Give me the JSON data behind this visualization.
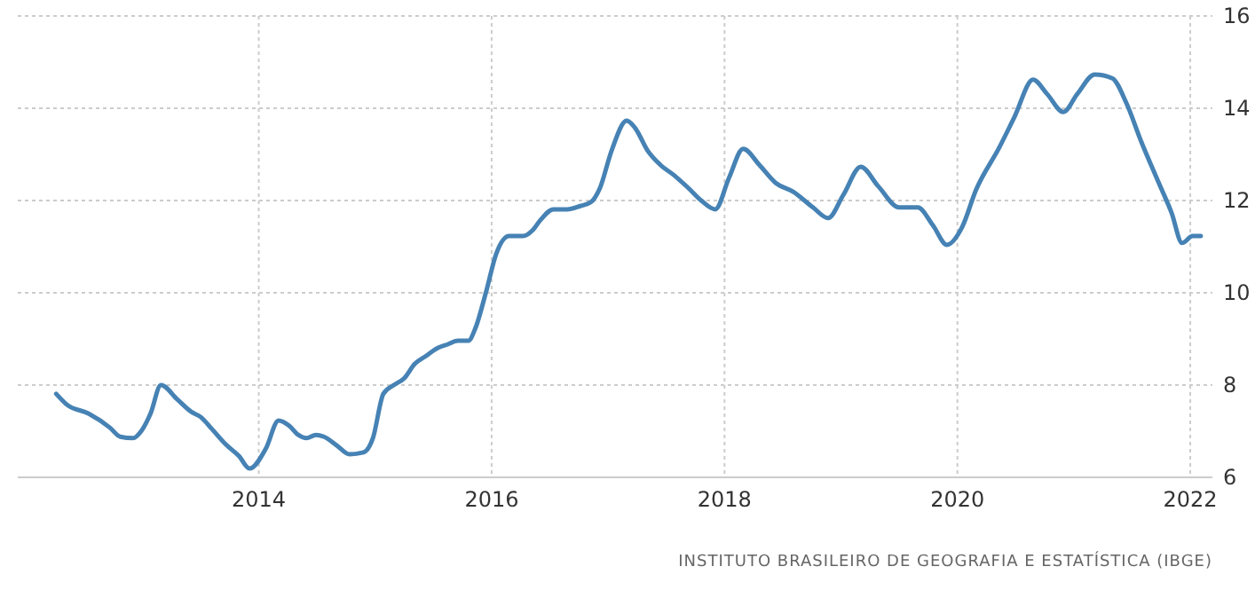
{
  "chart_data": {
    "type": "line",
    "annotations": [
      "INSTITUTO BRASILEIRO DE GEOGRAFIA E ESTATÍSTICA (IBGE)"
    ],
    "series": [
      {
        "color": "#4682b4",
        "x": [
          2012.26,
          2012.35,
          2012.54,
          2012.72,
          2012.81,
          2012.92,
          2012.99,
          2013.07,
          2013.16,
          2013.3,
          2013.42,
          2013.5,
          2013.6,
          2013.71,
          2013.83,
          2013.92,
          2014.06,
          2014.17,
          2014.26,
          2014.34,
          2014.41,
          2014.49,
          2014.56,
          2014.67,
          2014.78,
          2014.9,
          2014.98,
          2015.07,
          2015.16,
          2015.25,
          2015.34,
          2015.43,
          2015.54,
          2015.62,
          2015.71,
          2015.8,
          2015.86,
          2015.95,
          2016.04,
          2016.15,
          2016.27,
          2016.35,
          2016.42,
          2016.53,
          2016.65,
          2016.76,
          2016.85,
          2016.93,
          2017.03,
          2017.16,
          2017.23,
          2017.34,
          2017.45,
          2017.57,
          2017.69,
          2017.8,
          2017.92,
          2018.04,
          2018.16,
          2018.3,
          2018.44,
          2018.59,
          2018.76,
          2018.89,
          2019.02,
          2019.17,
          2019.32,
          2019.5,
          2019.66,
          2019.79,
          2019.91,
          2020.04,
          2020.16,
          2020.36,
          2020.49,
          2020.65,
          2020.77,
          2020.91,
          2021.03,
          2021.18,
          2021.33,
          2021.45,
          2021.58,
          2021.73,
          2021.84,
          2021.93,
          2022.02,
          2022.09
        ],
        "values": [
          7.81,
          7.58,
          7.38,
          7.08,
          6.88,
          6.85,
          7.0,
          7.38,
          8.0,
          7.69,
          7.42,
          7.31,
          7.04,
          6.73,
          6.46,
          6.19,
          6.62,
          7.23,
          7.12,
          6.92,
          6.85,
          6.92,
          6.88,
          6.69,
          6.5,
          6.54,
          6.85,
          7.81,
          8.0,
          8.15,
          8.46,
          8.62,
          8.81,
          8.88,
          8.96,
          8.96,
          9.23,
          10.0,
          10.85,
          11.23,
          11.23,
          11.35,
          11.58,
          11.81,
          11.81,
          11.88,
          11.96,
          12.27,
          13.08,
          13.73,
          13.58,
          13.08,
          12.77,
          12.54,
          12.27,
          12.0,
          11.81,
          12.5,
          13.12,
          12.77,
          12.38,
          12.19,
          11.85,
          11.62,
          12.12,
          12.73,
          12.31,
          11.85,
          11.85,
          11.46,
          11.04,
          11.42,
          12.23,
          13.15,
          13.81,
          14.62,
          14.31,
          13.92,
          14.31,
          14.73,
          14.65,
          14.12,
          13.27,
          12.38,
          11.73,
          11.08,
          11.23,
          11.23
        ]
      }
    ],
    "xlim": [
      2011.93,
      2022.19
    ],
    "xticks": [
      2014,
      2016,
      2018,
      2020,
      2022
    ],
    "ylim": [
      6,
      16
    ],
    "yticks": [
      6,
      8,
      10,
      12,
      14,
      16
    ],
    "grid": true,
    "marker": "none",
    "line_style": "solid"
  }
}
